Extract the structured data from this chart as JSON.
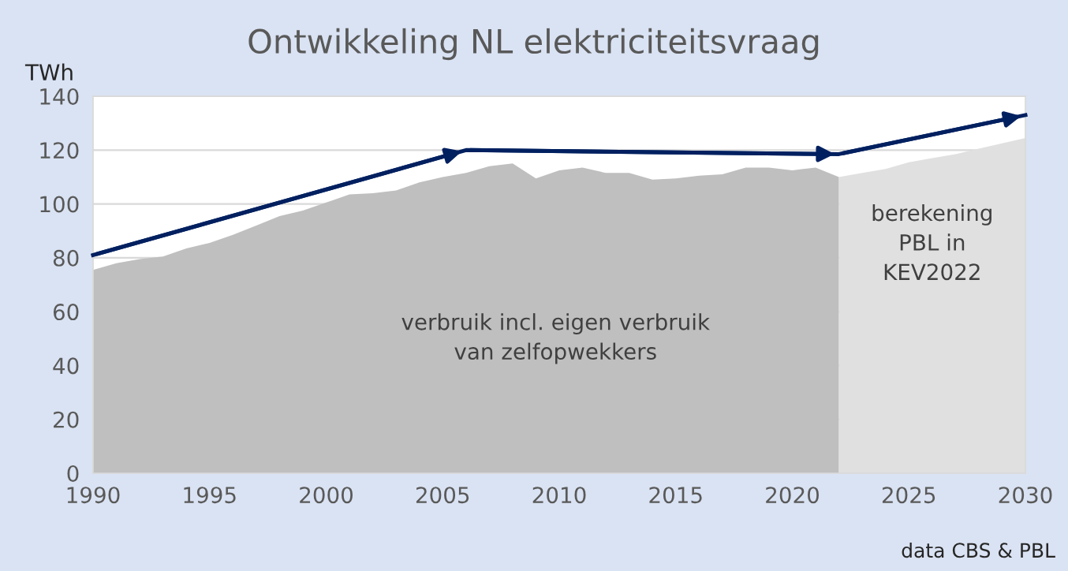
{
  "chart_data": {
    "type": "area",
    "title": "Ontwikkeling NL elektriciteitsvraag",
    "ylabel": "TWh",
    "annotations": [
      "verbruik incl. eigen verbruik\nvan zelfopwekkers",
      "berekening\nPBL in\nKEV2022",
      "data CBS & PBL"
    ],
    "series": [
      {
        "color": "#bfbfbf",
        "x": [
          1990,
          1991,
          1992,
          1993,
          1994,
          1995,
          1996,
          1997,
          1998,
          1999,
          2000,
          2001,
          2002,
          2003,
          2004,
          2005,
          2006,
          2007,
          2008,
          2009,
          2010,
          2011,
          2012,
          2013,
          2014,
          2015,
          2016,
          2017,
          2018,
          2019,
          2020,
          2021,
          2022
        ],
        "values": [
          75.5,
          78,
          79.5,
          80.5,
          83.5,
          85.5,
          88.5,
          92,
          95.5,
          97.5,
          100.5,
          103.5,
          104,
          105,
          108,
          110,
          111.5,
          114,
          115,
          109.5,
          112.5,
          113.5,
          111.5,
          111.5,
          109,
          109.5,
          110.5,
          111,
          113.5,
          113.5,
          112.5,
          113.5,
          110
        ]
      },
      {
        "color": "#e0e0e0",
        "x": [
          2022,
          2023,
          2024,
          2025,
          2026,
          2027,
          2028,
          2029,
          2030
        ],
        "values": [
          110,
          111.5,
          113,
          115.5,
          117,
          118.5,
          120.5,
          122.5,
          124.5
        ]
      },
      {
        "type": "line",
        "color": "#002060",
        "x": [
          1990,
          2006,
          2022,
          2030
        ],
        "values": [
          81,
          120,
          118.5,
          133
        ]
      }
    ],
    "xlim": [
      1990,
      2030
    ],
    "xticks": [
      1990,
      1995,
      2000,
      2005,
      2010,
      2015,
      2020,
      2025,
      2030
    ],
    "ylim": [
      0,
      140
    ],
    "yticks": [
      0,
      20,
      40,
      60,
      80,
      100,
      120,
      140
    ],
    "grid": "y",
    "legend": false,
    "marker": "none"
  }
}
